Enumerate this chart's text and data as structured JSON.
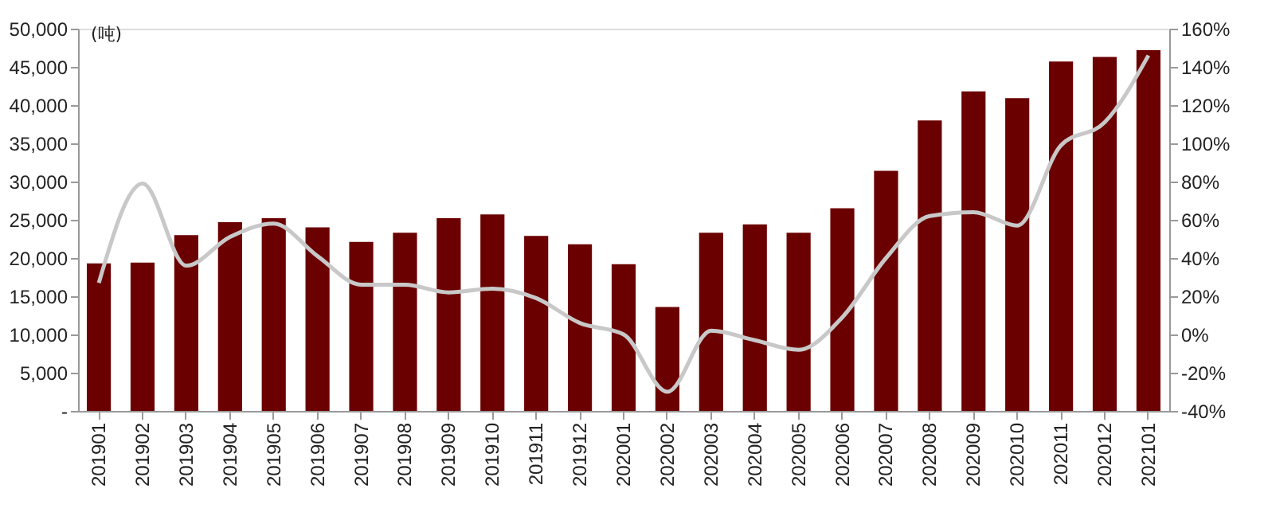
{
  "chart_data": {
    "type": "bar",
    "ylabel": "(吨)",
    "categories": [
      "201901",
      "201902",
      "201903",
      "201904",
      "201905",
      "201906",
      "201907",
      "201908",
      "201909",
      "201910",
      "201911",
      "201912",
      "202001",
      "202002",
      "202003",
      "202004",
      "202005",
      "202006",
      "202007",
      "202008",
      "202009",
      "202010",
      "202011",
      "202012",
      "202101"
    ],
    "series": [
      {
        "color": "#6b0000",
        "values": [
          19300,
          19400,
          23000,
          24700,
          25200,
          24000,
          22100,
          23300,
          25200,
          25700,
          22900,
          21800,
          19200,
          13600,
          23300,
          24400,
          23300,
          26500,
          31400,
          38000,
          41800,
          40900,
          45700,
          46300,
          47200
        ]
      },
      {
        "type": "line",
        "axis": "y2",
        "color": "#c8c8c8",
        "values": [
          27,
          79,
          36,
          51,
          58,
          41,
          26,
          26,
          22,
          24,
          19,
          6,
          0,
          -30,
          2,
          -3,
          -8,
          9,
          40,
          62,
          64,
          57,
          99,
          111,
          146
        ]
      }
    ],
    "ylim": [
      0,
      50000
    ],
    "yticks": [
      {
        "value": 0,
        "label": "-"
      },
      {
        "value": 5000,
        "label": "5,000"
      },
      {
        "value": 10000,
        "label": "10,000"
      },
      {
        "value": 15000,
        "label": "15,000"
      },
      {
        "value": 20000,
        "label": "20,000"
      },
      {
        "value": 25000,
        "label": "25,000"
      },
      {
        "value": 30000,
        "label": "30,000"
      },
      {
        "value": 35000,
        "label": "35,000"
      },
      {
        "value": 40000,
        "label": "40,000"
      },
      {
        "value": 45000,
        "label": "45,000"
      },
      {
        "value": 50000,
        "label": "50,000"
      }
    ],
    "y2lim": [
      -40,
      160
    ],
    "y2ticks": [
      {
        "value": -40,
        "label": "-40%"
      },
      {
        "value": -20,
        "label": "-20%"
      },
      {
        "value": 0,
        "label": "0%"
      },
      {
        "value": 20,
        "label": "20%"
      },
      {
        "value": 40,
        "label": "40%"
      },
      {
        "value": 60,
        "label": "60%"
      },
      {
        "value": 80,
        "label": "80%"
      },
      {
        "value": 100,
        "label": "100%"
      },
      {
        "value": 120,
        "label": "120%"
      },
      {
        "value": 140,
        "label": "140%"
      },
      {
        "value": 160,
        "label": "160%"
      }
    ],
    "grid": false
  }
}
